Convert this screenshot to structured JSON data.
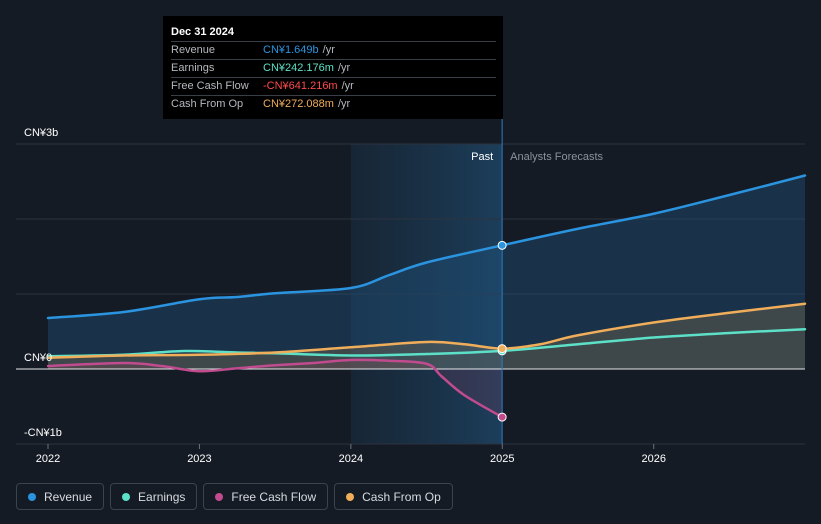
{
  "tooltip": {
    "date": "Dec 31 2024",
    "rows": [
      {
        "label": "Revenue",
        "value": "CN¥1.649b",
        "unit": "/yr",
        "color": "#2b94e0"
      },
      {
        "label": "Earnings",
        "value": "CN¥242.176m",
        "unit": "/yr",
        "color": "#5de0c8"
      },
      {
        "label": "Free Cash Flow",
        "value": "-CN¥641.216m",
        "unit": "/yr",
        "color": "#ff4a4a"
      },
      {
        "label": "Cash From Op",
        "value": "CN¥272.088m",
        "unit": "/yr",
        "color": "#f0ad5a"
      }
    ]
  },
  "legend": [
    {
      "label": "Revenue",
      "color": "#2b94e0"
    },
    {
      "label": "Earnings",
      "color": "#5de0c8"
    },
    {
      "label": "Free Cash Flow",
      "color": "#c04b8e"
    },
    {
      "label": "Cash From Op",
      "color": "#f0ad5a"
    }
  ],
  "chart_data": {
    "type": "line",
    "y_unit": "CN¥ b",
    "ylim": [
      -1,
      3
    ],
    "xlim": [
      2022.0,
      2026.999
    ],
    "past_range": [
      2024.0,
      2024.999
    ],
    "divider_x": 2024.999,
    "labels": {
      "past": "Past",
      "forecast": "Analysts Forecasts"
    },
    "y_tick_labels": [
      {
        "value": 3,
        "label": "CN¥3b"
      },
      {
        "value": 0,
        "label": "CN¥0"
      },
      {
        "value": -1,
        "label": "-CN¥1b"
      }
    ],
    "gridlines": [
      3,
      2,
      1,
      0,
      -1
    ],
    "x_ticks": [
      {
        "value": 2022.0,
        "label": "2022"
      },
      {
        "value": 2023.0,
        "label": "2023"
      },
      {
        "value": 2024.0,
        "label": "2024"
      },
      {
        "value": 2025.0,
        "label": "2025"
      },
      {
        "value": 2026.0,
        "label": "2026"
      }
    ],
    "series": [
      {
        "name": "Revenue",
        "color": "#2b94e0",
        "fill": true,
        "points": [
          [
            2022.0,
            0.68
          ],
          [
            2022.5,
            0.76
          ],
          [
            2023.0,
            0.93
          ],
          [
            2023.25,
            0.96
          ],
          [
            2023.5,
            1.01
          ],
          [
            2024.0,
            1.08
          ],
          [
            2024.25,
            1.25
          ],
          [
            2024.5,
            1.42
          ],
          [
            2024.999,
            1.649
          ],
          [
            2025.5,
            1.87
          ],
          [
            2026.0,
            2.07
          ],
          [
            2026.5,
            2.32
          ],
          [
            2026.999,
            2.58
          ]
        ]
      },
      {
        "name": "Earnings",
        "color": "#5de0c8",
        "fill": false,
        "points": [
          [
            2022.0,
            0.17
          ],
          [
            2022.5,
            0.19
          ],
          [
            2022.9,
            0.24
          ],
          [
            2023.25,
            0.22
          ],
          [
            2023.5,
            0.21
          ],
          [
            2024.0,
            0.18
          ],
          [
            2024.5,
            0.2
          ],
          [
            2024.999,
            0.242
          ],
          [
            2025.5,
            0.33
          ],
          [
            2026.0,
            0.42
          ],
          [
            2026.5,
            0.48
          ],
          [
            2026.999,
            0.53
          ]
        ]
      },
      {
        "name": "Free Cash Flow",
        "color": "#c04b8e",
        "fill": true,
        "fill_color": "#8a3a5c",
        "points": [
          [
            2022.0,
            0.04
          ],
          [
            2022.5,
            0.08
          ],
          [
            2022.75,
            0.04
          ],
          [
            2023.0,
            -0.03
          ],
          [
            2023.25,
            0.01
          ],
          [
            2023.5,
            0.05
          ],
          [
            2023.75,
            0.08
          ],
          [
            2024.0,
            0.12
          ],
          [
            2024.25,
            0.11
          ],
          [
            2024.5,
            0.07
          ],
          [
            2024.6,
            -0.1
          ],
          [
            2024.75,
            -0.35
          ],
          [
            2024.999,
            -0.641
          ]
        ]
      },
      {
        "name": "Cash From Op",
        "color": "#f0ad5a",
        "fill": true,
        "fill_color": "#c4924e",
        "points": [
          [
            2022.0,
            0.15
          ],
          [
            2022.5,
            0.18
          ],
          [
            2023.0,
            0.19
          ],
          [
            2023.5,
            0.22
          ],
          [
            2024.0,
            0.29
          ],
          [
            2024.5,
            0.36
          ],
          [
            2024.75,
            0.33
          ],
          [
            2024.999,
            0.272
          ],
          [
            2025.25,
            0.33
          ],
          [
            2025.5,
            0.45
          ],
          [
            2026.0,
            0.62
          ],
          [
            2026.5,
            0.75
          ],
          [
            2026.999,
            0.87
          ]
        ]
      }
    ],
    "highlight_x": 2024.999
  }
}
